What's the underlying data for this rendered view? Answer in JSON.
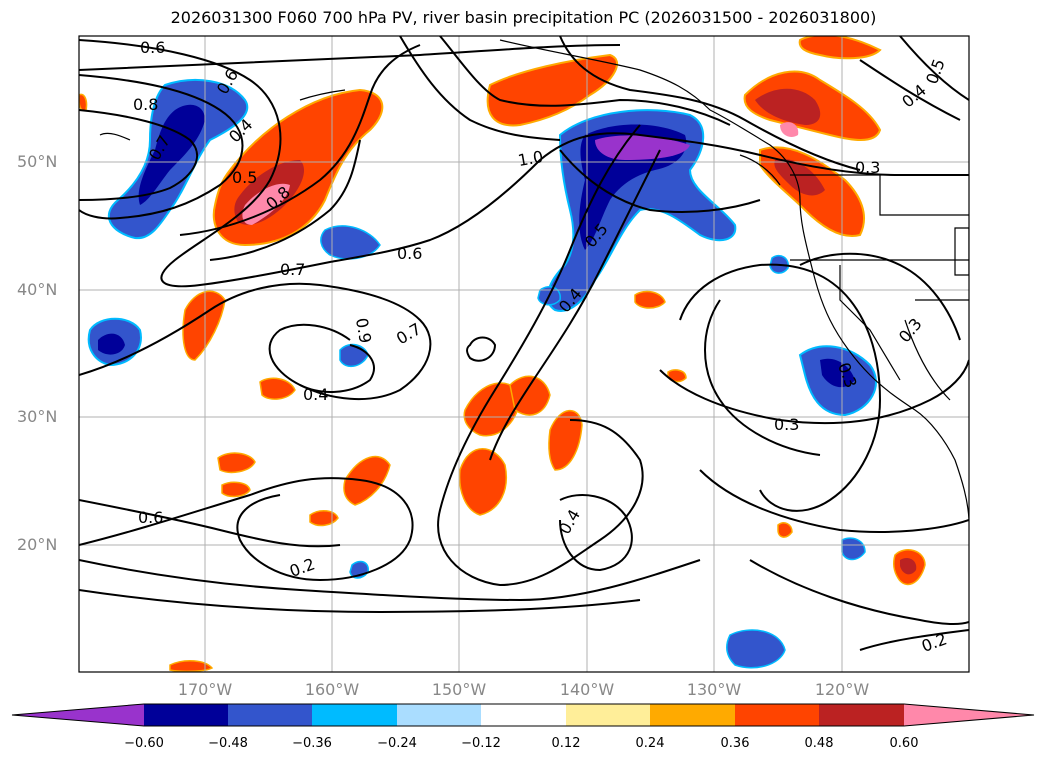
{
  "title": "2026031300 F060 700 hPa PV, river basin precipitation PC (2026031500 - 2026031800)",
  "lat_labels": [
    "50°N",
    "40°N",
    "30°N",
    "20°N"
  ],
  "lon_labels": [
    "170°W",
    "160°W",
    "150°W",
    "140°W",
    "130°W",
    "120°W"
  ],
  "colorbar": {
    "colors": [
      "#9933cc",
      "#000099",
      "#3355cc",
      "#00bbff",
      "#aaddff",
      "#ffffff",
      "#ffee99",
      "#ffaa00",
      "#ff4400",
      "#bb2222",
      "#ff88aa"
    ],
    "tick_labels": [
      "−0.60",
      "−0.48",
      "−0.36",
      "−0.24",
      "−0.12",
      "0.12",
      "0.24",
      "0.36",
      "0.48",
      "0.60"
    ]
  },
  "contour_labels": [
    "0.6",
    "0.8",
    "0.6",
    "0.7",
    "0.4",
    "0.5",
    "0.8",
    "0.7",
    "0.6",
    "1.0",
    "0.5",
    "0.4",
    "0.3",
    "0.9",
    "0.7",
    "0.4",
    "0.6",
    "0.2",
    "0.4",
    "0.3",
    "0.2",
    "0.3",
    "0.5",
    "0.4",
    "0.3"
  ],
  "map": {
    "lat_range": [
      10,
      60
    ],
    "lon_range": [
      -180,
      -110
    ],
    "grid": true
  }
}
